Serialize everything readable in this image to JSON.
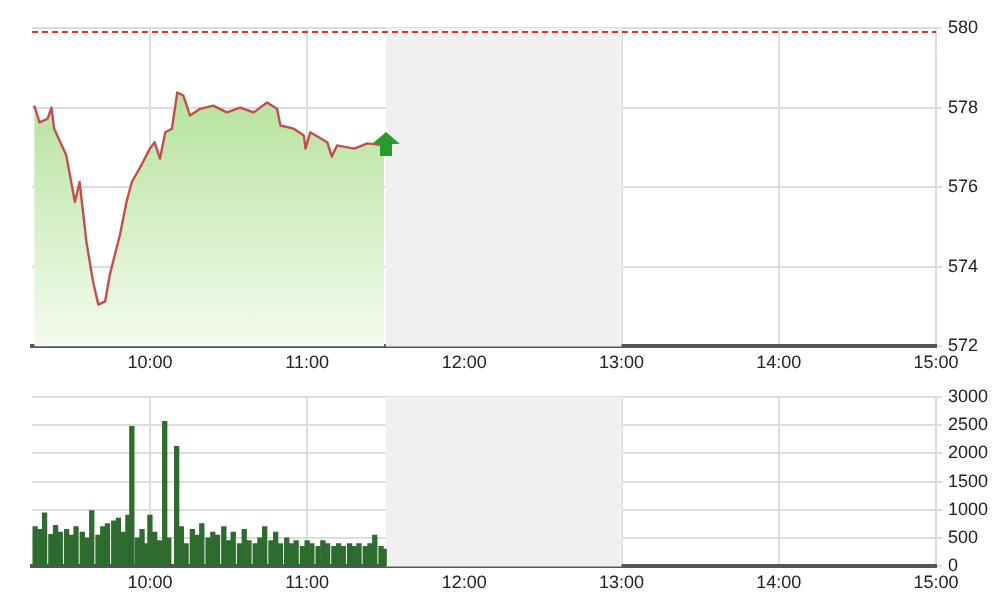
{
  "chart_data": [
    {
      "type": "area",
      "x": [
        9.264,
        9.298,
        9.349,
        9.374,
        9.391,
        9.468,
        9.523,
        9.553,
        9.596,
        9.638,
        9.672,
        9.715,
        9.745,
        9.809,
        9.851,
        9.885,
        9.945,
        10.0,
        10.03,
        10.064,
        10.098,
        10.14,
        10.174,
        10.213,
        10.255,
        10.319,
        10.404,
        10.489,
        10.574,
        10.66,
        10.745,
        10.809,
        10.83,
        10.915,
        10.979,
        10.99,
        11.02,
        11.128,
        11.157,
        11.19,
        11.3,
        11.383,
        11.49
      ],
      "series": [
        {
          "color": "#c0504d",
          "values": [
            578.05,
            577.63,
            577.72,
            578.0,
            577.47,
            576.8,
            575.63,
            576.13,
            574.63,
            573.63,
            573.05,
            573.13,
            573.8,
            574.8,
            575.63,
            576.13,
            576.55,
            576.97,
            577.13,
            576.72,
            577.38,
            577.47,
            578.38,
            578.3,
            577.8,
            577.97,
            578.05,
            577.88,
            578.0,
            577.88,
            578.13,
            577.97,
            577.55,
            577.47,
            577.3,
            576.97,
            577.38,
            577.13,
            576.77,
            577.05,
            576.97,
            577.1,
            577.05
          ]
        }
      ],
      "xlim": [
        9.25,
        15
      ],
      "xticks": [
        {
          "value": 10,
          "label": "10:00"
        },
        {
          "value": 11,
          "label": "11:00"
        },
        {
          "value": 12,
          "label": "12:00"
        },
        {
          "value": 13,
          "label": "13:00"
        },
        {
          "value": 14,
          "label": "14:00"
        },
        {
          "value": 15,
          "label": "15:00"
        }
      ],
      "ylim": [
        572,
        580
      ],
      "yticks": [
        572,
        574,
        576,
        578,
        580
      ],
      "grid": true,
      "ref_lines": [
        {
          "axis": "y",
          "value": 579.9,
          "color": "#e03030",
          "line_style": "dashed"
        }
      ],
      "bands": [
        {
          "axis": "x",
          "from": 11.5,
          "to": 13,
          "color": "#f0f0f0"
        }
      ]
    },
    {
      "type": "bar",
      "x": [
        9.27,
        9.3,
        9.33,
        9.37,
        9.4,
        9.43,
        9.47,
        9.5,
        9.53,
        9.57,
        9.6,
        9.63,
        9.67,
        9.7,
        9.73,
        9.77,
        9.8,
        9.83,
        9.86,
        9.885,
        9.92,
        9.95,
        9.98,
        10.0,
        10.03,
        10.06,
        10.094,
        10.12,
        10.17,
        10.2,
        10.23,
        10.27,
        10.3,
        10.33,
        10.37,
        10.4,
        10.43,
        10.47,
        10.5,
        10.53,
        10.57,
        10.6,
        10.63,
        10.67,
        10.7,
        10.73,
        10.77,
        10.8,
        10.83,
        10.87,
        10.9,
        10.93,
        10.97,
        11.0,
        11.03,
        11.07,
        11.1,
        11.13,
        11.17,
        11.2,
        11.23,
        11.27,
        11.3,
        11.33,
        11.37,
        11.4,
        11.43,
        11.47,
        11.49
      ],
      "series": [
        {
          "color": "#2e6b2e",
          "values": [
            700,
            650,
            940,
            560,
            720,
            600,
            650,
            550,
            700,
            600,
            500,
            980,
            550,
            700,
            750,
            800,
            850,
            600,
            900,
            2470,
            500,
            650,
            400,
            900,
            600,
            450,
            2560,
            500,
            2120,
            700,
            400,
            650,
            550,
            750,
            500,
            600,
            550,
            700,
            450,
            600,
            400,
            650,
            450,
            400,
            500,
            700,
            450,
            600,
            400,
            500,
            400,
            450,
            350,
            450,
            400,
            350,
            450,
            400,
            350,
            400,
            350,
            400,
            350,
            400,
            350,
            400,
            550,
            350,
            300
          ]
        }
      ],
      "xlim": [
        9.25,
        15
      ],
      "xticks": [
        {
          "value": 10,
          "label": "10:00"
        },
        {
          "value": 11,
          "label": "11:00"
        },
        {
          "value": 12,
          "label": "12:00"
        },
        {
          "value": 13,
          "label": "13:00"
        },
        {
          "value": 14,
          "label": "14:00"
        },
        {
          "value": 15,
          "label": "15:00"
        }
      ],
      "ylim": [
        0,
        3000
      ],
      "yticks": [
        0,
        500,
        1000,
        1500,
        2000,
        2500,
        3000
      ],
      "grid": true,
      "bands": [
        {
          "axis": "x",
          "from": 11.5,
          "to": 13,
          "color": "#f0f0f0"
        }
      ]
    }
  ]
}
